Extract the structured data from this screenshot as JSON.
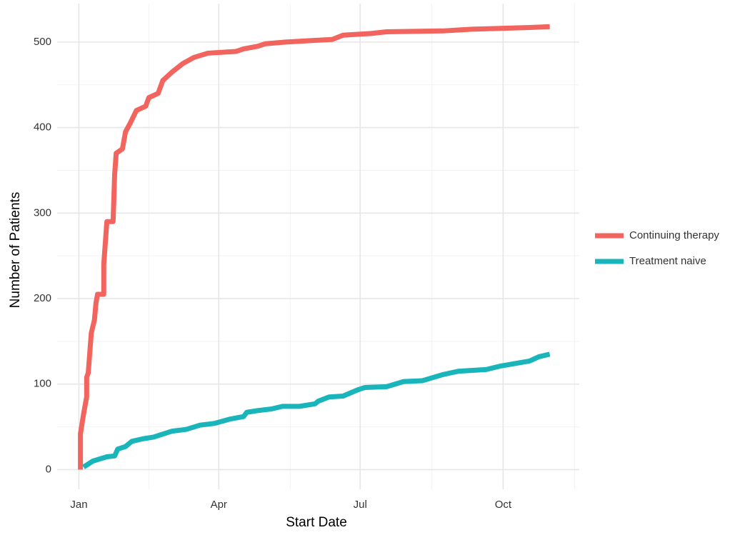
{
  "chart_data": {
    "type": "line",
    "xlabel": "Start Date",
    "ylabel": "Number of Patients",
    "xlim": [
      -14,
      322
    ],
    "ylim": [
      -23,
      545
    ],
    "xticks": [
      {
        "value": 0,
        "label": "Jan"
      },
      {
        "value": 90,
        "label": "Apr"
      },
      {
        "value": 181,
        "label": "Jul"
      },
      {
        "value": 273,
        "label": "Oct"
      }
    ],
    "xminorticks": [
      45,
      136,
      227,
      319
    ],
    "yticks": [
      0,
      100,
      200,
      300,
      400,
      500
    ],
    "yminorticks": [
      50,
      150,
      250,
      350,
      450
    ],
    "grid": true,
    "legend": "right",
    "series": [
      {
        "name": "Continuing therapy",
        "color": "#F2645E",
        "x": [
          1,
          1,
          3,
          5,
          5,
          6,
          8,
          10,
          11,
          12,
          16,
          16,
          18,
          22,
          23,
          24,
          28,
          30,
          33,
          37,
          43,
          45,
          51,
          54,
          60,
          67,
          74,
          83,
          101,
          106,
          115,
          120,
          133,
          152,
          163,
          170,
          188,
          198,
          234,
          253,
          271,
          290,
          303
        ],
        "values": [
          0,
          42,
          65,
          85,
          108,
          113,
          160,
          175,
          195,
          205,
          205,
          240,
          290,
          290,
          345,
          370,
          375,
          395,
          405,
          420,
          425,
          435,
          440,
          455,
          465,
          475,
          482,
          487,
          489,
          492,
          495,
          498,
          500,
          502,
          503,
          508,
          510,
          512,
          513,
          515,
          516,
          517,
          518
        ]
      },
      {
        "name": "Treatment naive",
        "color": "#1AB5BA",
        "x": [
          3,
          9,
          18,
          23,
          25,
          30,
          34,
          41,
          48,
          60,
          69,
          78,
          87,
          97,
          106,
          108,
          115,
          124,
          131,
          142,
          152,
          154,
          161,
          170,
          179,
          184,
          198,
          209,
          221,
          234,
          244,
          262,
          271,
          290,
          296,
          303
        ],
        "values": [
          3,
          10,
          15,
          16,
          24,
          27,
          33,
          36,
          38,
          45,
          47,
          52,
          54,
          59,
          62,
          67,
          69,
          71,
          74,
          74,
          77,
          80,
          85,
          86,
          93,
          96,
          97,
          103,
          104,
          111,
          115,
          117,
          121,
          127,
          132,
          135
        ]
      }
    ]
  }
}
